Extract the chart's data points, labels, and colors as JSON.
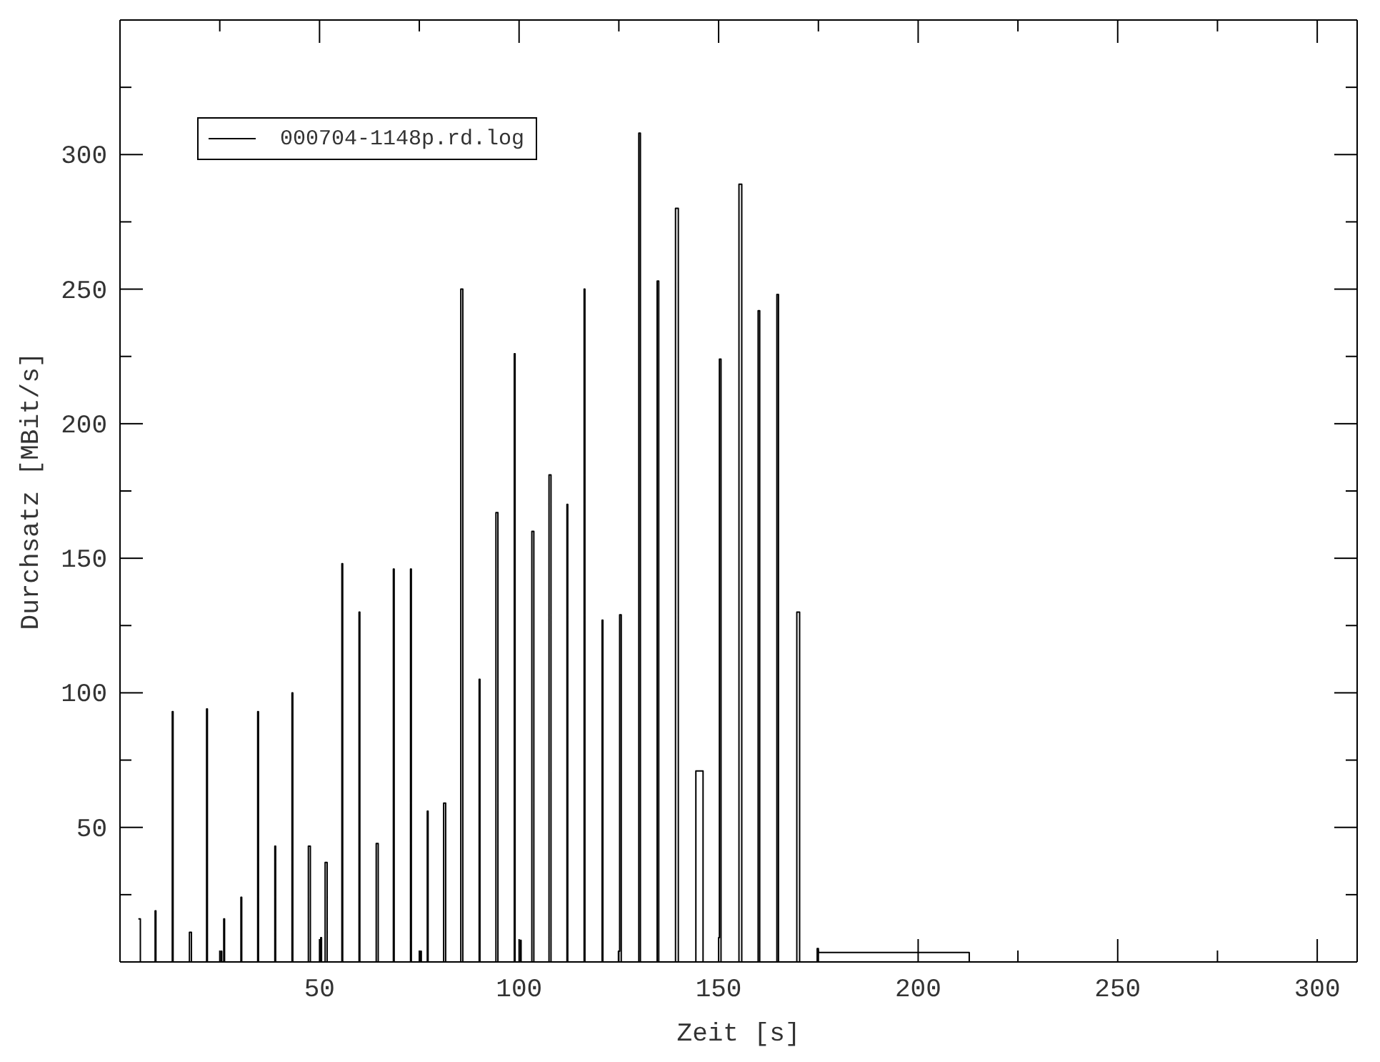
{
  "chart_data": {
    "type": "step",
    "xlabel": "Zeit [s]",
    "ylabel": "Durchsatz [MBit/s]",
    "x": [
      4.6,
      5.1,
      8.8,
      9.0,
      13.1,
      13.3,
      17.4,
      17.9,
      21.7,
      21.9,
      25.3,
      25.5,
      26.0,
      26.2,
      30.3,
      30.5,
      34.5,
      34.7,
      38.8,
      39.0,
      43.1,
      43.3,
      47.2,
      47.7,
      50.3,
      50.5,
      51.4,
      51.9,
      55.6,
      55.8,
      59.9,
      60.1,
      64.2,
      64.7,
      68.5,
      68.7,
      72.8,
      73.0,
      75.3,
      75.5,
      77.0,
      77.2,
      81.1,
      81.6,
      85.4,
      85.9,
      90.0,
      90.2,
      94.2,
      94.7,
      98.8,
      99.0,
      100.3,
      100.5,
      103.2,
      103.7,
      107.5,
      108.0,
      112.0,
      112.2,
      116.3,
      116.5,
      120.8,
      121.0,
      124.9,
      125.2,
      125.6,
      130.0,
      130.4,
      134.6,
      135.0,
      139.2,
      139.9,
      144.3,
      146.1,
      150.0,
      150.2,
      150.6,
      155.1,
      155.8,
      159.9,
      160.3,
      164.6,
      165.0,
      169.6,
      170.3,
      174.7,
      175.0,
      212.8
    ],
    "series": [
      {
        "name": "000704-1148p.rd.log",
        "color": "#000000",
        "values": [
          16,
          0,
          19,
          0,
          93,
          0,
          11,
          0,
          94,
          0,
          4,
          0,
          16,
          0,
          24,
          0,
          93,
          0,
          43,
          0,
          100,
          0,
          43,
          0,
          9,
          0,
          37,
          0,
          148,
          0,
          130,
          0,
          44,
          0,
          146,
          0,
          146,
          0,
          4,
          0,
          56,
          0,
          59,
          0,
          250,
          0,
          105,
          0,
          167,
          0,
          226,
          0,
          8,
          0,
          160,
          0,
          181,
          0,
          170,
          0,
          250,
          0,
          127,
          0,
          4,
          129,
          0,
          308,
          0,
          253,
          0,
          280,
          0,
          71,
          0,
          9,
          224,
          0,
          289,
          0,
          242,
          0,
          248,
          0,
          130,
          0,
          5,
          3.5,
          0
        ]
      }
    ],
    "xlim": [
      0,
      310
    ],
    "ylim": [
      0,
      350
    ],
    "xticks": [
      {
        "value": 25,
        "label": null
      },
      50,
      {
        "value": 75,
        "label": null
      },
      100,
      {
        "value": 125,
        "label": null
      },
      150,
      {
        "value": 175,
        "label": null
      },
      200,
      {
        "value": 225,
        "label": null
      },
      250,
      {
        "value": 275,
        "label": null
      },
      300
    ],
    "yticks": [
      {
        "value": 25,
        "label": null
      },
      50,
      {
        "value": 75,
        "label": null
      },
      100,
      {
        "value": 125,
        "label": null
      },
      150,
      {
        "value": 175,
        "label": null
      },
      200,
      {
        "value": 225,
        "label": null
      },
      250,
      {
        "value": 275,
        "label": null
      },
      300,
      {
        "value": 325,
        "label": null
      }
    ],
    "legend": "top left"
  }
}
